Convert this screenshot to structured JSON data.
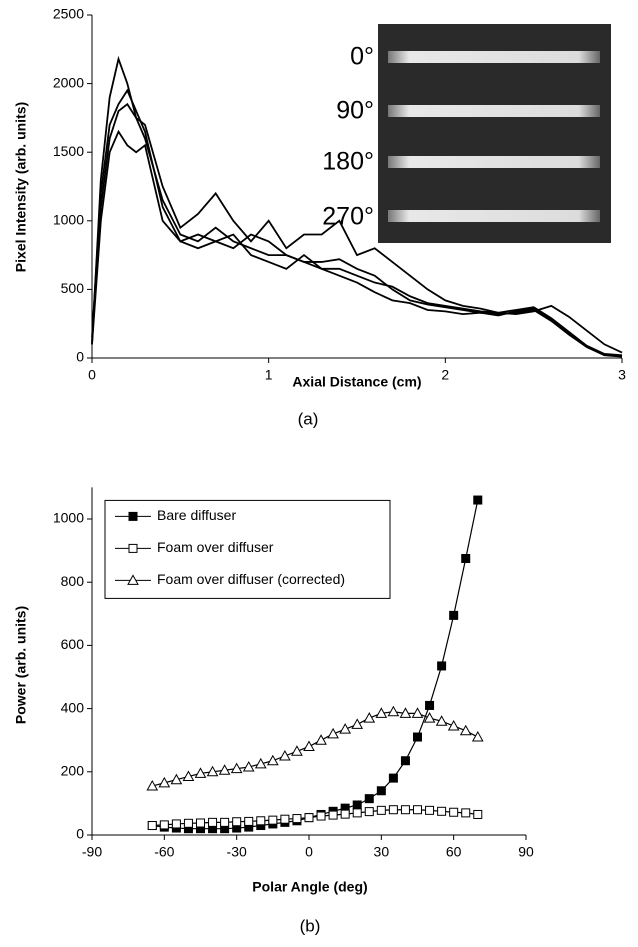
{
  "chart_data": [
    {
      "type": "line",
      "caption": "(a)",
      "x_label": "Axial Distance (cm)",
      "y_label": "Pixel Intensity (arb. units)",
      "annotations": [
        "0°",
        "90°",
        "180°",
        "270°"
      ],
      "x": [
        0,
        0.05,
        0.1,
        0.15,
        0.2,
        0.25,
        0.3,
        0.4,
        0.5,
        0.6,
        0.7,
        0.8,
        0.9,
        1.0,
        1.1,
        1.2,
        1.3,
        1.4,
        1.5,
        1.6,
        1.7,
        1.8,
        1.9,
        2.0,
        2.1,
        2.2,
        2.3,
        2.4,
        2.5,
        2.6,
        2.7,
        2.8,
        2.9,
        3.0
      ],
      "series": [
        {
          "color": "#000000",
          "values": [
            100,
            1300,
            1900,
            2180,
            2000,
            1750,
            1700,
            1250,
            950,
            1050,
            1200,
            1000,
            850,
            1000,
            800,
            900,
            900,
            1000,
            750,
            800,
            700,
            600,
            500,
            420,
            380,
            360,
            330,
            320,
            340,
            380,
            300,
            200,
            100,
            40
          ]
        },
        {
          "color": "#000000",
          "values": [
            150,
            1200,
            1700,
            1850,
            1950,
            1800,
            1650,
            1100,
            850,
            900,
            850,
            800,
            900,
            850,
            750,
            700,
            650,
            650,
            600,
            550,
            520,
            450,
            400,
            380,
            360,
            340,
            330,
            350,
            370,
            290,
            190,
            90,
            30,
            20
          ]
        },
        {
          "color": "#000000",
          "values": [
            120,
            1100,
            1600,
            1800,
            1850,
            1750,
            1600,
            1150,
            900,
            850,
            950,
            850,
            800,
            750,
            750,
            700,
            700,
            720,
            650,
            600,
            500,
            420,
            390,
            370,
            350,
            330,
            310,
            340,
            360,
            280,
            180,
            80,
            25,
            15
          ]
        },
        {
          "color": "#000000",
          "values": [
            100,
            1000,
            1500,
            1650,
            1550,
            1500,
            1550,
            1000,
            850,
            800,
            850,
            900,
            750,
            700,
            650,
            750,
            650,
            600,
            550,
            480,
            420,
            400,
            350,
            340,
            320,
            330,
            320,
            330,
            350,
            270,
            170,
            80,
            20,
            10
          ]
        }
      ],
      "xlim": [
        0,
        3
      ],
      "xticks": [
        0,
        1,
        2,
        3
      ],
      "ylim": [
        0,
        2500
      ],
      "yticks": [
        0,
        500,
        1000,
        1500,
        2000,
        2500
      ]
    },
    {
      "type": "line",
      "caption": "(b)",
      "x_label": "Polar Angle (deg)",
      "y_label": "Power (arb. units)",
      "legend": "upper left",
      "x": [
        -65,
        -60,
        -55,
        -50,
        -45,
        -40,
        -35,
        -30,
        -25,
        -20,
        -15,
        -10,
        -5,
        0,
        5,
        10,
        15,
        20,
        25,
        30,
        35,
        40,
        45,
        50,
        55,
        60,
        65,
        70
      ],
      "series": [
        {
          "name": "Bare diffuser",
          "color": "#000000",
          "marker": "filled-square",
          "values": [
            30,
            25,
            22,
            20,
            20,
            20,
            20,
            22,
            25,
            30,
            35,
            40,
            45,
            55,
            65,
            75,
            85,
            95,
            115,
            140,
            180,
            235,
            310,
            410,
            535,
            695,
            875,
            1060
          ]
        },
        {
          "name": "Foam over diffuser",
          "color": "#000000",
          "marker": "open-square",
          "values": [
            30,
            32,
            35,
            37,
            38,
            40,
            40,
            42,
            43,
            45,
            47,
            50,
            52,
            55,
            60,
            63,
            66,
            70,
            74,
            78,
            80,
            80,
            80,
            78,
            75,
            72,
            70,
            65
          ]
        },
        {
          "name": "Foam over diffuser (corrected)",
          "color": "#000000",
          "marker": "open-triangle",
          "values": [
            155,
            165,
            175,
            185,
            195,
            200,
            205,
            210,
            215,
            225,
            235,
            250,
            265,
            280,
            300,
            320,
            335,
            350,
            370,
            385,
            390,
            385,
            385,
            370,
            360,
            345,
            330,
            310
          ]
        }
      ],
      "xlim": [
        -90,
        90
      ],
      "xticks": [
        -90,
        -60,
        -30,
        0,
        30,
        60,
        90
      ],
      "ylim": [
        0,
        1100
      ],
      "yticks": [
        0,
        200,
        400,
        600,
        800,
        1000
      ]
    }
  ]
}
